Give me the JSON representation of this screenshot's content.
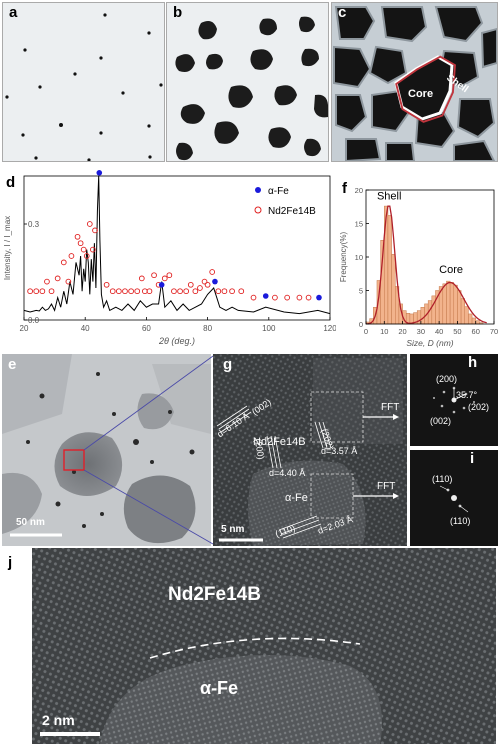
{
  "panels": {
    "a": "a",
    "b": "b",
    "c": "c",
    "d": "d",
    "e": "e",
    "f": "f",
    "g": "g",
    "h": "h",
    "i": "i",
    "j": "j"
  },
  "panel_c": {
    "shell": "Shell",
    "core": "Core"
  },
  "chart_data": [
    {
      "type": "line",
      "panel": "d",
      "xlabel": "2θ (deg.)",
      "ylabel": "Intensity, I / I_max",
      "xlim": [
        20,
        120
      ],
      "ylim": [
        0,
        0.45
      ],
      "xticks": [
        "20",
        "40",
        "60",
        "80",
        "100",
        "120"
      ],
      "yticks": [
        "0.0",
        "0.3"
      ],
      "legend": [
        {
          "marker": "filled-circle",
          "color": "#1a1adb",
          "label": "α-Fe"
        },
        {
          "marker": "open-circle",
          "color": "#e02020",
          "label": "Nd2Fe14B"
        }
      ],
      "series": [
        {
          "x": [
            20,
            22,
            24,
            25,
            26,
            27,
            28,
            29,
            30,
            31,
            32,
            33,
            34,
            35,
            36,
            37,
            38,
            38.5,
            39,
            39.5,
            40,
            40.5,
            41,
            41.5,
            42,
            42.5,
            43,
            43.5,
            44,
            44.4,
            44.8,
            45.3,
            46,
            47,
            48,
            50,
            52,
            54,
            56,
            58,
            60,
            62,
            64,
            65,
            66,
            68,
            70,
            72,
            74,
            76,
            78,
            80,
            82,
            84,
            86,
            88,
            90,
            95,
            99,
            105,
            110,
            116,
            120
          ],
          "y": [
            0.03,
            0.025,
            0.03,
            0.028,
            0.04,
            0.03,
            0.035,
            0.05,
            0.03,
            0.07,
            0.04,
            0.09,
            0.05,
            0.12,
            0.08,
            0.18,
            0.14,
            0.2,
            0.09,
            0.16,
            0.12,
            0.22,
            0.18,
            0.08,
            0.19,
            0.12,
            0.24,
            0.1,
            0.34,
            0.45,
            0.25,
            0.08,
            0.04,
            0.06,
            0.03,
            0.04,
            0.03,
            0.05,
            0.03,
            0.06,
            0.04,
            0.05,
            0.05,
            0.12,
            0.04,
            0.06,
            0.03,
            0.05,
            0.03,
            0.04,
            0.05,
            0.08,
            0.1,
            0.04,
            0.03,
            0.04,
            0.03,
            0.025,
            0.04,
            0.025,
            0.02,
            0.03,
            0.02
          ]
        }
      ],
      "alpha_fe_markers": [
        [
          44.6,
          0.46
        ],
        [
          65.0,
          0.11
        ],
        [
          82.4,
          0.12
        ],
        [
          99.0,
          0.075
        ],
        [
          116.4,
          0.07
        ]
      ],
      "nd_markers": [
        [
          22,
          0.09
        ],
        [
          24,
          0.09
        ],
        [
          26,
          0.09
        ],
        [
          27.5,
          0.12
        ],
        [
          29,
          0.09
        ],
        [
          31,
          0.13
        ],
        [
          33,
          0.18
        ],
        [
          34.5,
          0.12
        ],
        [
          35.5,
          0.2
        ],
        [
          37.5,
          0.26
        ],
        [
          38.5,
          0.24
        ],
        [
          39.5,
          0.22
        ],
        [
          40.5,
          0.2
        ],
        [
          41.5,
          0.3
        ],
        [
          42.5,
          0.22
        ],
        [
          43.2,
          0.28
        ],
        [
          47,
          0.11
        ],
        [
          49,
          0.09
        ],
        [
          51,
          0.09
        ],
        [
          53,
          0.09
        ],
        [
          55,
          0.09
        ],
        [
          57,
          0.09
        ],
        [
          58.5,
          0.13
        ],
        [
          59.5,
          0.09
        ],
        [
          61,
          0.09
        ],
        [
          62.5,
          0.14
        ],
        [
          64,
          0.11
        ],
        [
          66,
          0.13
        ],
        [
          67.5,
          0.14
        ],
        [
          69,
          0.09
        ],
        [
          71,
          0.09
        ],
        [
          73,
          0.09
        ],
        [
          74.5,
          0.11
        ],
        [
          76,
          0.09
        ],
        [
          77.5,
          0.1
        ],
        [
          79,
          0.12
        ],
        [
          80,
          0.11
        ],
        [
          81.5,
          0.15
        ],
        [
          83.5,
          0.09
        ],
        [
          85.5,
          0.09
        ],
        [
          88,
          0.09
        ],
        [
          91,
          0.09
        ],
        [
          95,
          0.07
        ],
        [
          102,
          0.07
        ],
        [
          106,
          0.07
        ],
        [
          110,
          0.07
        ],
        [
          113,
          0.07
        ]
      ]
    },
    {
      "type": "bar",
      "panel": "f",
      "xlabel": "Size, D (nm)",
      "ylabel": "Frequency(%)",
      "xlim": [
        0,
        70
      ],
      "ylim": [
        0,
        20
      ],
      "xticks": [
        "0",
        "10",
        "20",
        "30",
        "40",
        "50",
        "60",
        "70"
      ],
      "yticks": [
        "0",
        "5",
        "10",
        "15",
        "20"
      ],
      "annotations": [
        "Shell",
        "Core"
      ],
      "bin_width": 2,
      "bins": [
        2,
        4,
        6,
        8,
        10,
        12,
        14,
        16,
        18,
        20,
        22,
        24,
        26,
        28,
        30,
        32,
        34,
        36,
        38,
        40,
        42,
        44,
        46,
        48,
        50,
        52,
        54,
        56,
        58,
        60,
        62,
        64
      ],
      "values": [
        0.3,
        0.8,
        2.5,
        6.5,
        12.5,
        17.6,
        16.2,
        10.4,
        5.6,
        3.0,
        2.0,
        1.6,
        1.5,
        1.7,
        2.0,
        2.5,
        3.0,
        3.5,
        4.2,
        5.0,
        5.6,
        6.0,
        6.4,
        6.2,
        5.8,
        5.0,
        3.8,
        2.6,
        1.5,
        0.9,
        0.5,
        0.2
      ]
    }
  ],
  "panel_e": {
    "scalebar": "50 nm"
  },
  "panel_g": {
    "phase1": "Nd2Fe14B",
    "phase2": "α-Fe",
    "d1": "d=6.10 Å",
    "d2": "d=4.40 Å",
    "d3": "d=3.57 Å",
    "d4": "d=2.03 Å",
    "h1": "(002)",
    "h2": "(200)",
    "h3": "(202)",
    "h4": "(110)",
    "fft": "FFT",
    "scalebar": "5 nm"
  },
  "panel_h": {
    "s1": "(200)",
    "angle": "35.7°",
    "s2": "(202)",
    "s3": "(002)"
  },
  "panel_i": {
    "s1": "(110)",
    "s2": "(110)"
  },
  "panel_j": {
    "phase1": "Nd2Fe14B",
    "phase2": "α-Fe",
    "scalebar": "2 nm"
  }
}
